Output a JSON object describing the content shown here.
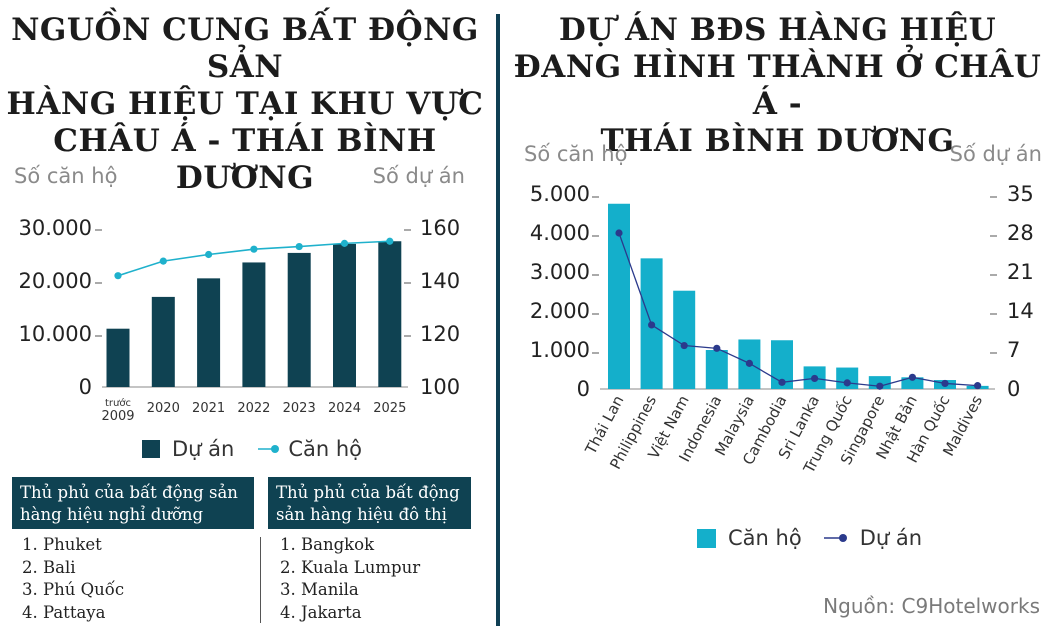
{
  "left": {
    "title": "NGUỒN CUNG BẤT ĐỘNG SẢN HÀNG HIỆU TẠI KHU VỰC CHÂU Á - THÁI BÌNH DƯƠNG",
    "title_lines": [
      "NGUỒN CUNG BẤT ĐỘNG SẢN",
      "HÀNG HIỆU TẠI KHU VỰC",
      "CHÂU Á - THÁI BÌNH DƯƠNG"
    ],
    "legend": {
      "bar": "Dự án",
      "line": "Căn hộ"
    },
    "box1_title": "Thủ phủ của bất động sản hàng hiệu nghỉ dưỡng",
    "box1_lines": [
      "Thủ phủ của bất động sản",
      "hàng hiệu nghỉ dưỡng"
    ],
    "box1_items": [
      "1. Phuket",
      "2. Bali",
      "3. Phú Quốc",
      "4. Pattaya"
    ],
    "box2_title": "Thủ phủ của bất động sản hàng hiệu đô thị",
    "box2_lines": [
      "Thủ phủ của bất động",
      "sản hàng hiệu đô thị"
    ],
    "box2_items": [
      "1. Bangkok",
      "2. Kuala Lumpur",
      "3. Manila",
      "4. Jakarta"
    ],
    "colors": {
      "bar": "#0f4252",
      "line": "#1fb1cc"
    }
  },
  "right": {
    "title": "DỰ ÁN BĐS HÀNG HIỆU ĐANG HÌNH THÀNH Ở CHÂU Á - THÁI BÌNH DƯƠNG",
    "title_lines": [
      "DỰ ÁN BĐS HÀNG HIỆU",
      "ĐANG HÌNH THÀNH Ở CHÂU Á -",
      "THÁI BÌNH DƯƠNG"
    ],
    "legend": {
      "bar": "Căn hộ",
      "line": "Dự án"
    },
    "colors": {
      "bar": "#14afcb",
      "line": "#2b3a8c"
    }
  },
  "source": "Nguồn: C9Hotelworks",
  "chart_data": [
    {
      "type": "bar",
      "title": "NGUỒN CUNG BẤT ĐỘNG SẢN HÀNG HIỆU TẠI KHU VỰC CHÂU Á - THÁI BÌNH DƯƠNG",
      "categories": [
        [
          "trước",
          "2009"
        ],
        [
          "2020"
        ],
        [
          "2021"
        ],
        [
          "2022"
        ],
        [
          "2023"
        ],
        [
          "2024"
        ],
        [
          "2025"
        ]
      ],
      "ylabel": "Số căn hộ",
      "y2label": "Số dự án",
      "ylim": [
        0,
        30000
      ],
      "y2lim": [
        100,
        160
      ],
      "yticks": [
        0,
        10000,
        20000,
        30000
      ],
      "ytick_labels": [
        "0",
        "10.000",
        "20.000",
        "30.000"
      ],
      "y2ticks": [
        100,
        120,
        140,
        160
      ],
      "y2tick_labels": [
        "100",
        "120",
        "140",
        "160"
      ],
      "series": [
        {
          "name": "Dự án",
          "kind": "bar",
          "axis": "left",
          "values": [
            11000,
            17000,
            20500,
            23500,
            25300,
            27000,
            27500
          ]
        },
        {
          "name": "Căn hộ",
          "kind": "line",
          "axis": "right",
          "values": [
            142,
            147.5,
            150,
            152,
            153,
            154.2,
            155
          ]
        }
      ],
      "legend_position": "bottom"
    },
    {
      "type": "bar",
      "title": "DỰ ÁN BĐS HÀNG HIỆU ĐANG HÌNH THÀNH Ở CHÂU Á - THÁI BÌNH DƯƠNG",
      "categories": [
        "Thái Lan",
        "Philippines",
        "Việt Nam",
        "Indonesia",
        "Malaysia",
        "Cambodia",
        "Sri Lanka",
        "Trung Quốc",
        "Singapore",
        "Nhật Bản",
        "Hàn Quốc",
        "Maldives"
      ],
      "ylabel": "Số căn hộ",
      "y2label": "Số dự án",
      "ylim": [
        0,
        5000
      ],
      "y2lim": [
        0,
        35
      ],
      "yticks": [
        0,
        1000,
        2000,
        3000,
        4000,
        5000
      ],
      "ytick_labels": [
        "0",
        "1.000",
        "2.000",
        "3.000",
        "4.000",
        "5.000"
      ],
      "y2ticks": [
        0,
        7,
        14,
        21,
        28,
        35
      ],
      "y2tick_labels": [
        "0",
        "7",
        "14",
        "21",
        "28",
        "35"
      ],
      "series": [
        {
          "name": "Căn hộ",
          "kind": "bar",
          "axis": "left",
          "values": [
            4750,
            3350,
            2520,
            1000,
            1270,
            1250,
            580,
            550,
            330,
            300,
            230,
            80
          ]
        },
        {
          "name": "Dự án",
          "kind": "line",
          "axis": "right",
          "values": [
            28,
            11.5,
            7.8,
            7.3,
            4.6,
            1.2,
            1.9,
            1.1,
            0.5,
            2.1,
            1,
            0.6
          ]
        }
      ],
      "legend_position": "bottom"
    }
  ]
}
